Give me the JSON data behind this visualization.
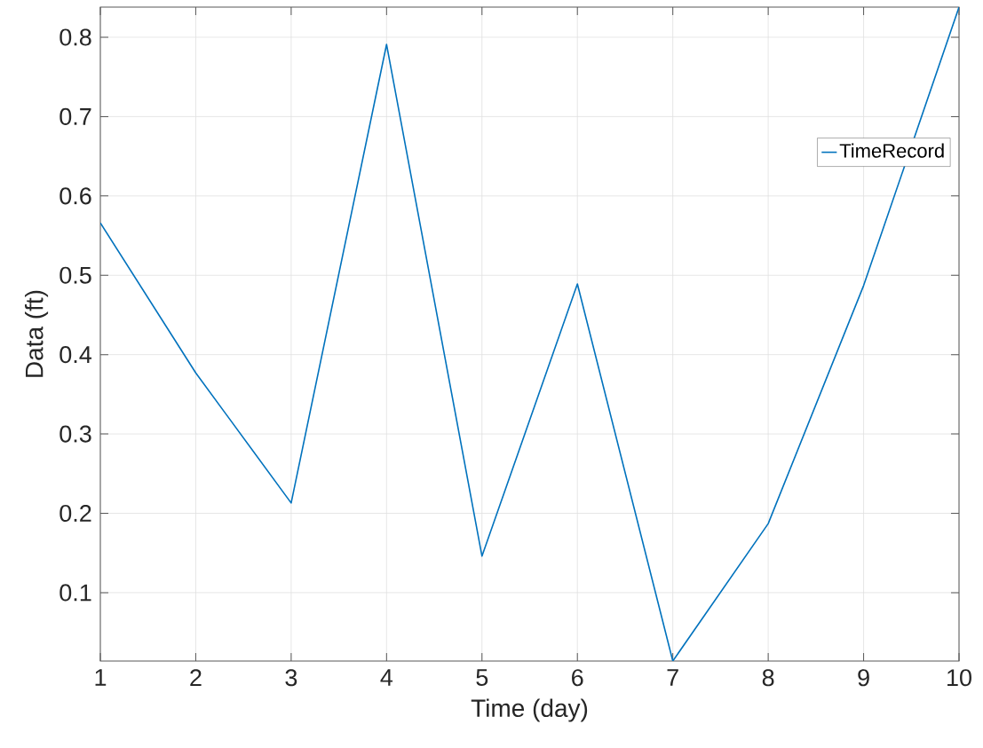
{
  "chart_data": {
    "type": "line",
    "xlabel": "Time (day)",
    "ylabel": "Data (ft)",
    "x": [
      1,
      2,
      3,
      4,
      5,
      6,
      7,
      8,
      9,
      10
    ],
    "series": [
      {
        "name": "TimeRecord",
        "color": "#0072bd",
        "values": [
          0.566,
          0.377,
          0.213,
          0.791,
          0.146,
          0.489,
          0.0138,
          0.187,
          0.487,
          0.838
        ]
      }
    ],
    "xlim": [
      1,
      10
    ],
    "ylim": [
      0.0138,
      0.838
    ],
    "xticks": [
      1,
      2,
      3,
      4,
      5,
      6,
      7,
      8,
      9,
      10
    ],
    "yticks": [
      0.1,
      0.2,
      0.3,
      0.4,
      0.5,
      0.6,
      0.7,
      0.8
    ],
    "grid": true,
    "legend": "top right"
  }
}
